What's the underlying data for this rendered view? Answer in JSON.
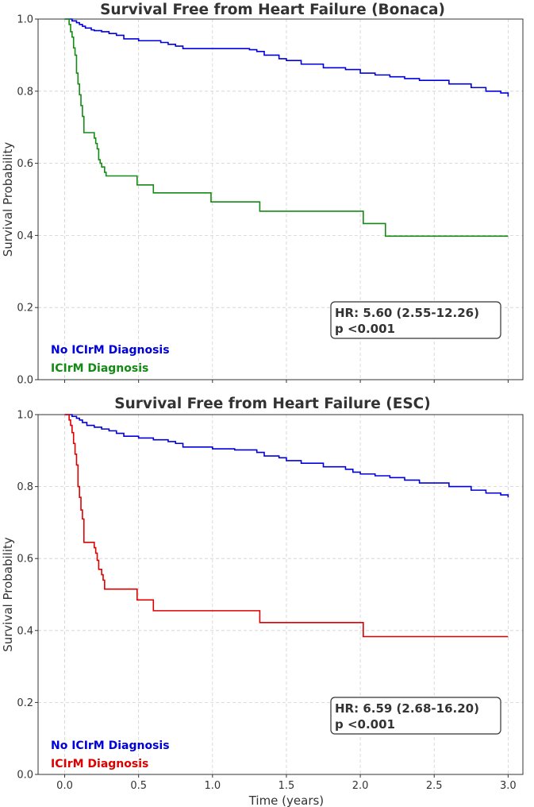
{
  "chart_data": [
    {
      "type": "line",
      "title": "Survival Free from Heart Failure (Bonaca)",
      "xlabel": "",
      "ylabel": "Survival Probability",
      "xlim": [
        -0.18,
        3.1
      ],
      "ylim": [
        0,
        1.0
      ],
      "xticks": [
        0.0,
        0.5,
        1.0,
        1.5,
        2.0,
        2.5,
        3.0
      ],
      "xtick_labels": [
        "",
        "",
        "",
        "",
        "",
        "",
        ""
      ],
      "yticks": [
        0.0,
        0.2,
        0.4,
        0.6,
        0.8,
        1.0
      ],
      "ytick_labels": [
        "0.0",
        "0.2",
        "0.4",
        "0.6",
        "0.8",
        "1.0"
      ],
      "grid": true,
      "legend_position": "bottom-left",
      "annotation": {
        "hr": "HR: 5.60 (2.55-12.26)",
        "p": "p <0.001"
      },
      "series": [
        {
          "name": "No ICIrM Diagnosis",
          "color": "#0000dd",
          "x": [
            0,
            0.05,
            0.08,
            0.1,
            0.12,
            0.14,
            0.18,
            0.2,
            0.25,
            0.3,
            0.35,
            0.4,
            0.5,
            0.6,
            0.65,
            0.7,
            0.75,
            0.8,
            1.0,
            1.15,
            1.2,
            1.25,
            1.3,
            1.35,
            1.45,
            1.5,
            1.6,
            1.75,
            1.8,
            1.9,
            2.0,
            2.1,
            2.2,
            2.3,
            2.4,
            2.6,
            2.7,
            2.75,
            2.85,
            2.95,
            3.0
          ],
          "y": [
            1.0,
            0.995,
            0.99,
            0.985,
            0.98,
            0.975,
            0.97,
            0.968,
            0.965,
            0.96,
            0.955,
            0.945,
            0.94,
            0.94,
            0.935,
            0.93,
            0.925,
            0.918,
            0.918,
            0.918,
            0.918,
            0.915,
            0.91,
            0.9,
            0.89,
            0.885,
            0.875,
            0.865,
            0.865,
            0.86,
            0.85,
            0.845,
            0.84,
            0.835,
            0.83,
            0.82,
            0.82,
            0.81,
            0.8,
            0.795,
            0.785
          ]
        },
        {
          "name": "ICIrM Diagnosis",
          "color": "#138a13",
          "x": [
            0,
            0.03,
            0.04,
            0.05,
            0.06,
            0.07,
            0.08,
            0.09,
            0.1,
            0.11,
            0.12,
            0.13,
            0.2,
            0.21,
            0.22,
            0.23,
            0.24,
            0.25,
            0.27,
            0.28,
            0.48,
            0.49,
            0.59,
            0.6,
            0.98,
            0.99,
            1.31,
            1.32,
            2.01,
            2.02,
            2.16,
            2.17,
            3.0
          ],
          "y": [
            1.0,
            0.985,
            0.965,
            0.95,
            0.92,
            0.9,
            0.85,
            0.82,
            0.79,
            0.76,
            0.73,
            0.685,
            0.67,
            0.655,
            0.64,
            0.61,
            0.6,
            0.59,
            0.575,
            0.565,
            0.565,
            0.54,
            0.54,
            0.518,
            0.518,
            0.493,
            0.493,
            0.467,
            0.467,
            0.433,
            0.433,
            0.398,
            0.398
          ]
        }
      ]
    },
    {
      "type": "line",
      "title": "Survival Free from Heart Failure (ESC)",
      "xlabel": "Time (years)",
      "ylabel": "Survival Probability",
      "xlim": [
        -0.18,
        3.1
      ],
      "ylim": [
        0,
        1.0
      ],
      "xticks": [
        0.0,
        0.5,
        1.0,
        1.5,
        2.0,
        2.5,
        3.0
      ],
      "xtick_labels": [
        "0.0",
        "0.5",
        "1.0",
        "1.5",
        "2.0",
        "2.5",
        "3.0"
      ],
      "yticks": [
        0.0,
        0.2,
        0.4,
        0.6,
        0.8,
        1.0
      ],
      "ytick_labels": [
        "0.0",
        "0.2",
        "0.4",
        "0.6",
        "0.8",
        "1.0"
      ],
      "grid": true,
      "legend_position": "bottom-left",
      "annotation": {
        "hr": "HR: 6.59 (2.68-16.20)",
        "p": "p <0.001"
      },
      "series": [
        {
          "name": "No ICIrM Diagnosis",
          "color": "#0000dd",
          "x": [
            0,
            0.05,
            0.08,
            0.1,
            0.12,
            0.15,
            0.2,
            0.25,
            0.3,
            0.35,
            0.4,
            0.5,
            0.6,
            0.65,
            0.7,
            0.75,
            0.8,
            1.0,
            1.15,
            1.25,
            1.3,
            1.35,
            1.45,
            1.5,
            1.6,
            1.75,
            1.8,
            1.9,
            1.95,
            2.0,
            2.1,
            2.2,
            2.3,
            2.4,
            2.6,
            2.7,
            2.75,
            2.85,
            2.95,
            3.0
          ],
          "y": [
            1.0,
            0.995,
            0.99,
            0.985,
            0.978,
            0.97,
            0.965,
            0.96,
            0.955,
            0.948,
            0.94,
            0.935,
            0.93,
            0.93,
            0.925,
            0.92,
            0.91,
            0.905,
            0.902,
            0.902,
            0.895,
            0.885,
            0.88,
            0.872,
            0.865,
            0.855,
            0.855,
            0.848,
            0.84,
            0.835,
            0.83,
            0.825,
            0.818,
            0.81,
            0.8,
            0.8,
            0.79,
            0.782,
            0.777,
            0.77
          ]
        },
        {
          "name": "ICIrM Diagnosis",
          "color": "#dd0000",
          "x": [
            0,
            0.03,
            0.04,
            0.05,
            0.06,
            0.07,
            0.08,
            0.09,
            0.1,
            0.11,
            0.12,
            0.13,
            0.2,
            0.21,
            0.22,
            0.23,
            0.25,
            0.26,
            0.27,
            0.28,
            0.48,
            0.49,
            0.59,
            0.6,
            1.31,
            1.32,
            2.01,
            2.02,
            3.0
          ],
          "y": [
            1.0,
            0.985,
            0.97,
            0.95,
            0.92,
            0.89,
            0.86,
            0.8,
            0.77,
            0.735,
            0.71,
            0.645,
            0.63,
            0.615,
            0.595,
            0.57,
            0.555,
            0.54,
            0.515,
            0.515,
            0.515,
            0.485,
            0.485,
            0.455,
            0.455,
            0.422,
            0.422,
            0.383,
            0.383
          ]
        }
      ]
    }
  ]
}
